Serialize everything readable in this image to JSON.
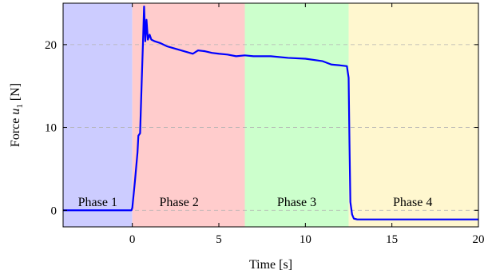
{
  "chart_data": {
    "type": "line",
    "xlabel": "Time [s]",
    "ylabel_prefix": "Force ",
    "ylabel_var": "u",
    "ylabel_sub": "1",
    "ylabel_unit": " [N]",
    "xlim": [
      -4,
      20
    ],
    "ylim": [
      -2,
      25
    ],
    "xticks": [
      0,
      5,
      10,
      15,
      20
    ],
    "yticks": [
      0,
      10,
      20
    ],
    "grid": "horizontal-dashed",
    "phases": [
      {
        "label": "Phase 1",
        "x_start": -4,
        "x_end": 0,
        "color": "#ccccff",
        "label_x": -2.0,
        "label_y": 1.0
      },
      {
        "label": "Phase 2",
        "x_start": 0,
        "x_end": 6.5,
        "color": "#ffcccc",
        "label_x": 2.7,
        "label_y": 1.0
      },
      {
        "label": "Phase 3",
        "x_start": 6.5,
        "x_end": 12.5,
        "color": "#ccffcc",
        "label_x": 9.5,
        "label_y": 1.0
      },
      {
        "label": "Phase 4",
        "x_start": 12.5,
        "x_end": 20,
        "color": "#fff7cf",
        "label_x": 16.2,
        "label_y": 1.0
      }
    ],
    "series": [
      {
        "color": "#0000ff",
        "x": [
          -4,
          -0.05,
          0.0,
          0.15,
          0.3,
          0.35,
          0.45,
          0.55,
          0.62,
          0.68,
          0.75,
          0.82,
          0.9,
          1.0,
          1.1,
          1.3,
          1.6,
          2.0,
          2.5,
          3.0,
          3.5,
          3.8,
          4.2,
          4.6,
          5.0,
          5.5,
          6.0,
          6.5,
          7.0,
          8.0,
          9.0,
          10.0,
          11.0,
          11.5,
          12.0,
          12.4,
          12.5,
          12.55,
          12.6,
          12.7,
          12.8,
          13.0,
          14.0,
          16.0,
          18.0,
          20.0
        ],
        "y": [
          0,
          0,
          0.3,
          3.5,
          7.0,
          9.0,
          9.3,
          16.0,
          20.5,
          24.6,
          20.4,
          23.0,
          20.6,
          21.2,
          20.6,
          20.4,
          20.2,
          19.8,
          19.5,
          19.2,
          18.9,
          19.3,
          19.2,
          19.0,
          18.9,
          18.8,
          18.6,
          18.7,
          18.6,
          18.6,
          18.4,
          18.3,
          18.0,
          17.6,
          17.5,
          17.4,
          16.0,
          8.0,
          1.0,
          -0.5,
          -1.0,
          -1.1,
          -1.1,
          -1.1,
          -1.1,
          -1.1
        ]
      }
    ]
  }
}
